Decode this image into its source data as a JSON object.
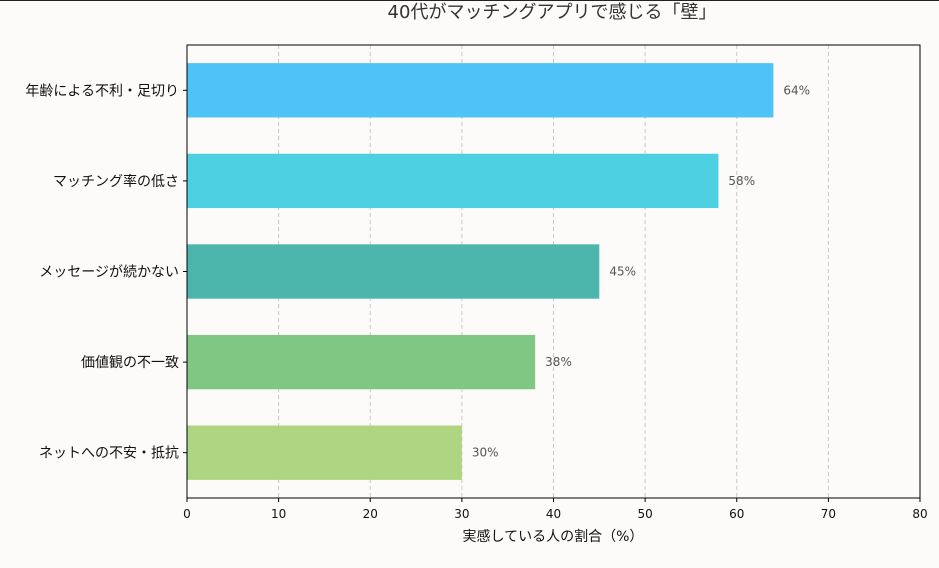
{
  "chart_data": {
    "type": "bar",
    "orientation": "horizontal",
    "title": "40代がマッチングアプリで感じる「壁」",
    "xlabel": "実感している人の割合（%）",
    "ylabel": "",
    "xlim": [
      0,
      80
    ],
    "xticks": [
      "0",
      "10",
      "20",
      "30",
      "40",
      "50",
      "60",
      "70",
      "80"
    ],
    "grid": "vertical dashed",
    "categories": [
      "年齢による不利・足切り",
      "マッチング率の低さ",
      "メッセージが続かない",
      "価値観の不一致",
      "ネットへの不安・抵抗"
    ],
    "values": [
      64,
      58,
      45,
      38,
      30
    ],
    "value_labels": [
      "64%",
      "58%",
      "45%",
      "38%",
      "30%"
    ],
    "colors": [
      "#4fc3f7",
      "#4dd0e1",
      "#4db6ac",
      "#81c784",
      "#aed581"
    ]
  }
}
